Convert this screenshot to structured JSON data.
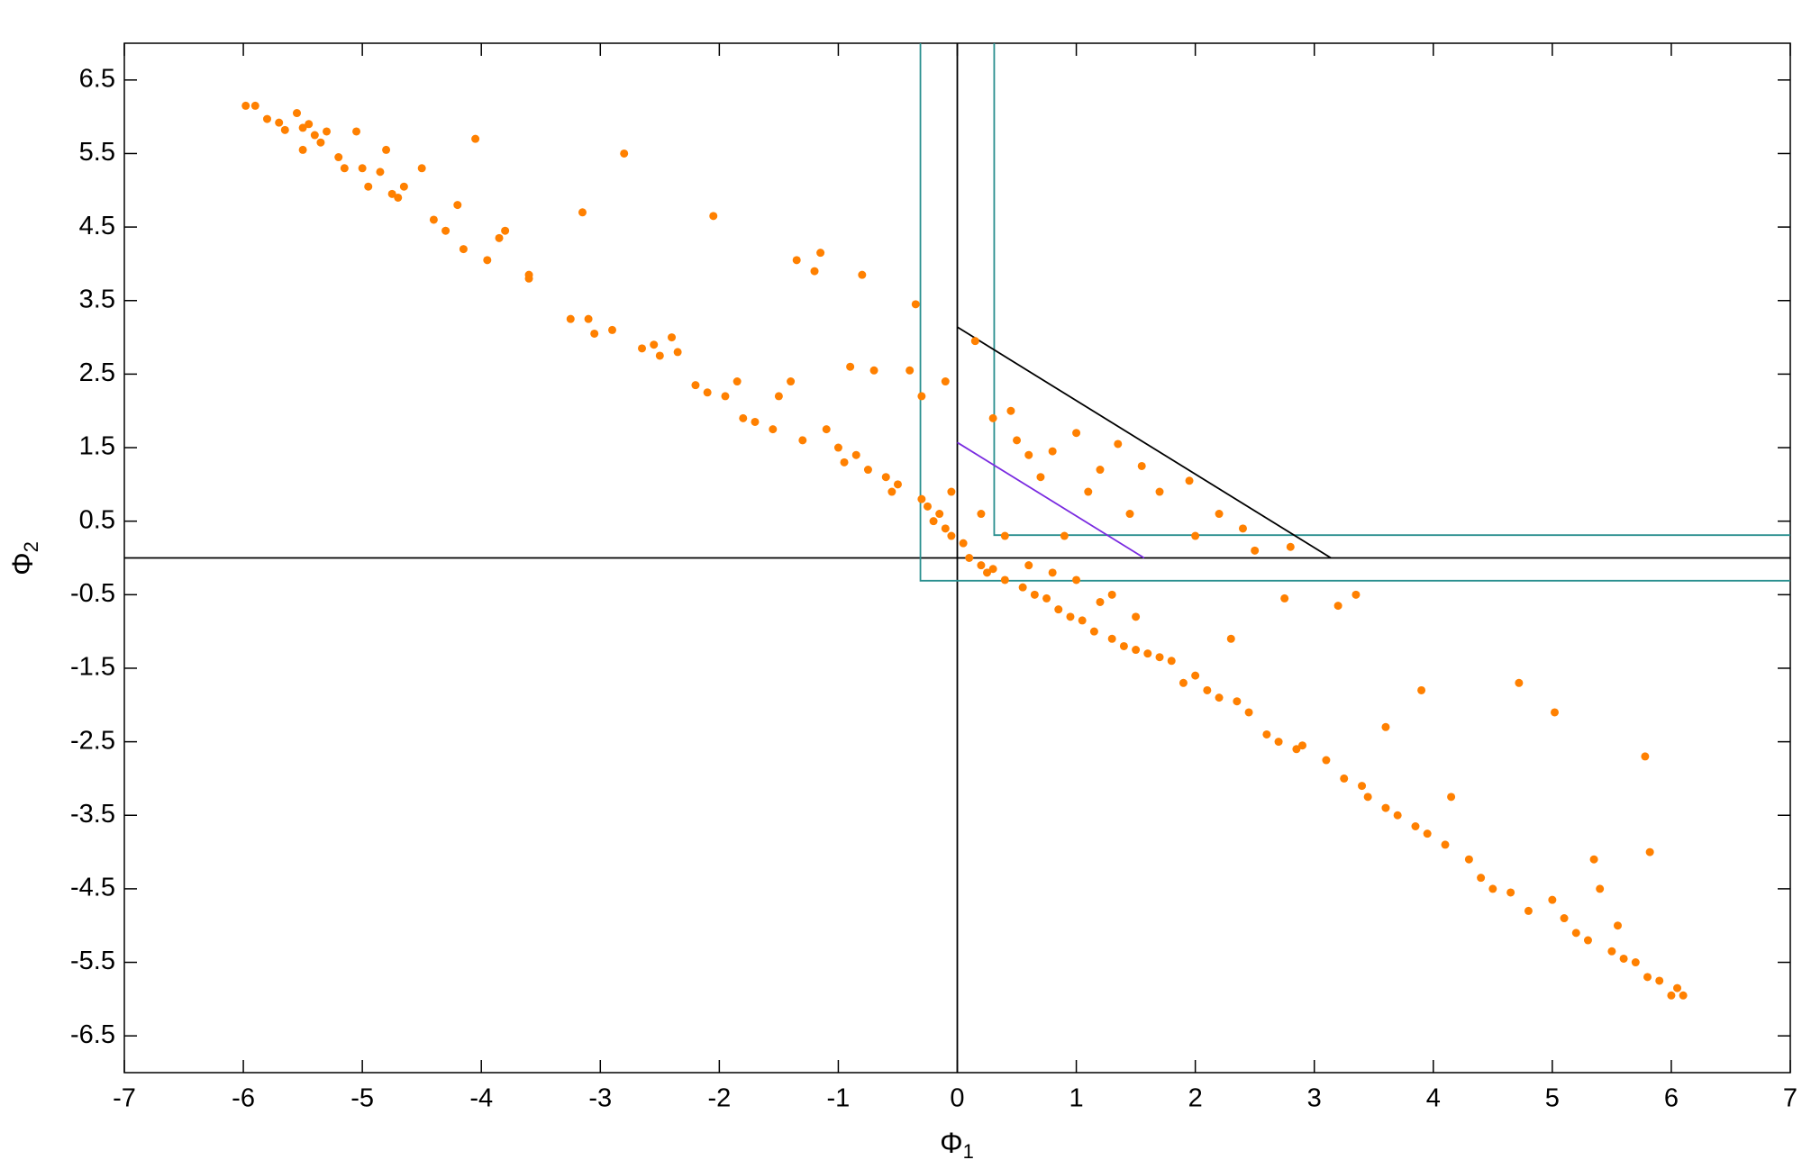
{
  "chart_data": {
    "type": "scatter",
    "x_label": {
      "symbol": "Φ",
      "subscript": "1"
    },
    "y_label": {
      "symbol": "Φ",
      "subscript": "2"
    },
    "xlim": [
      -7,
      7
    ],
    "ylim": [
      -7,
      7
    ],
    "xticks": [
      -7,
      -6,
      -5,
      -4,
      -3,
      -2,
      -1,
      0,
      1,
      2,
      3,
      4,
      5,
      6,
      7
    ],
    "yticks": [
      6.5,
      5.5,
      4.5,
      3.5,
      2.5,
      1.5,
      0.5,
      -0.5,
      -1.5,
      -2.5,
      -3.5,
      -4.5,
      -5.5,
      -6.5
    ],
    "color": "#ff8000",
    "x": [
      -5.98,
      -5.9,
      -5.8,
      -5.7,
      -5.65,
      -5.55,
      -5.5,
      -5.45,
      -5.4,
      -5.35,
      -5.5,
      -5.2,
      -5.15,
      -5.0,
      -4.95,
      -4.85,
      -4.75,
      -4.7,
      -4.65,
      -4.5,
      -5.05,
      -4.8,
      -5.3,
      -4.4,
      -4.3,
      -4.2,
      -4.15,
      -4.05,
      -3.95,
      -3.85,
      -3.8,
      -3.6,
      -3.6,
      -3.25,
      -3.15,
      -3.1,
      -3.05,
      -2.9,
      -2.8,
      -2.65,
      -2.55,
      -2.4,
      -2.5,
      -2.35,
      -2.2,
      -2.1,
      -2.05,
      -1.95,
      -1.85,
      -1.8,
      -1.7,
      -1.55,
      -1.5,
      -1.4,
      -1.35,
      -1.2,
      -1.3,
      -1.15,
      -1.1,
      -1.0,
      -0.95,
      -0.9,
      -0.85,
      -0.8,
      -0.75,
      -0.7,
      -0.6,
      -0.55,
      -0.5,
      -0.4,
      -0.35,
      -0.3,
      -0.3,
      -0.25,
      -0.2,
      -0.15,
      -0.1,
      -0.1,
      -0.05,
      0.05,
      0.1,
      0.15,
      0.2,
      0.25,
      0.3,
      0.3,
      0.4,
      0.45,
      0.5,
      0.55,
      0.6,
      0.65,
      0.7,
      0.75,
      0.8,
      0.85,
      0.95,
      1.0,
      1.05,
      1.1,
      1.15,
      1.2,
      1.3,
      1.35,
      1.4,
      1.45,
      1.5,
      1.6,
      1.7,
      1.55,
      1.8,
      1.9,
      1.95,
      2.0,
      2.1,
      2.2,
      2.3,
      2.35,
      2.45,
      2.5,
      2.6,
      2.7,
      2.75,
      2.8,
      2.85,
      2.9,
      3.1,
      3.2,
      3.25,
      3.4,
      3.45,
      3.6,
      3.6,
      3.7,
      3.85,
      3.9,
      3.95,
      4.1,
      4.15,
      4.3,
      4.4,
      4.5,
      4.65,
      4.72,
      4.8,
      5.0,
      5.02,
      5.1,
      5.2,
      5.3,
      5.35,
      5.4,
      5.5,
      5.6,
      5.7,
      5.78,
      5.8,
      5.82,
      5.9,
      6.0,
      6.05,
      6.1,
      5.55,
      1.3,
      0.9,
      0.6,
      0.4,
      0.2,
      -0.05,
      0.8,
      1.0,
      1.2,
      1.5,
      2.2,
      1.7,
      2.0,
      2.4,
      3.35
    ],
    "y": [
      6.15,
      6.15,
      5.97,
      5.92,
      5.82,
      6.05,
      5.85,
      5.9,
      5.75,
      5.65,
      5.55,
      5.45,
      5.3,
      5.3,
      5.05,
      5.25,
      4.95,
      4.9,
      5.05,
      5.3,
      5.8,
      5.55,
      5.8,
      4.6,
      4.45,
      4.8,
      4.2,
      5.7,
      4.05,
      4.35,
      4.45,
      3.85,
      3.8,
      3.25,
      4.7,
      3.25,
      3.05,
      3.1,
      5.5,
      2.85,
      2.9,
      3.0,
      2.75,
      2.8,
      2.35,
      2.25,
      4.65,
      2.2,
      2.4,
      1.9,
      1.85,
      1.75,
      2.2,
      2.4,
      4.05,
      3.9,
      1.6,
      4.15,
      1.75,
      1.5,
      1.3,
      2.6,
      1.4,
      3.85,
      1.2,
      2.55,
      1.1,
      0.9,
      1.0,
      2.55,
      3.45,
      2.2,
      0.8,
      0.7,
      0.5,
      0.6,
      2.4,
      0.4,
      0.3,
      0.2,
      0.0,
      2.95,
      -0.1,
      -0.2,
      1.9,
      -0.15,
      -0.3,
      2.0,
      1.6,
      -0.4,
      1.4,
      -0.5,
      1.1,
      -0.55,
      1.45,
      -0.7,
      -0.8,
      1.7,
      -0.85,
      0.9,
      -1.0,
      1.2,
      -1.1,
      1.55,
      -1.2,
      0.6,
      -1.25,
      -1.3,
      -1.35,
      1.25,
      -1.4,
      -1.7,
      1.05,
      -1.6,
      -1.8,
      -1.9,
      -1.1,
      -1.95,
      -2.1,
      0.1,
      -2.4,
      -2.5,
      -0.55,
      0.15,
      -2.6,
      -2.55,
      -2.75,
      -0.65,
      -3.0,
      -3.1,
      -3.25,
      -3.4,
      -2.3,
      -3.5,
      -3.65,
      -1.8,
      -3.75,
      -3.9,
      -3.25,
      -4.1,
      -4.35,
      -4.5,
      -4.55,
      -1.7,
      -4.8,
      -4.65,
      -2.1,
      -4.9,
      -5.1,
      -5.2,
      -4.1,
      -4.5,
      -5.35,
      -5.45,
      -5.5,
      -2.7,
      -5.7,
      -4.0,
      -5.75,
      -5.95,
      -5.85,
      -5.95,
      -5.0,
      -0.5,
      0.3,
      -0.1,
      0.3,
      0.6,
      0.9,
      -0.2,
      -0.3,
      -0.6,
      -0.8,
      0.6,
      0.9,
      0.3,
      0.4,
      -0.5
    ],
    "lines": [
      {
        "color": "#000000",
        "x": [
          0,
          0
        ],
        "y": [
          -7,
          7
        ]
      },
      {
        "color": "#000000",
        "x": [
          -7,
          7
        ],
        "y": [
          0,
          0
        ]
      },
      {
        "color": "#2a8f8f",
        "x": [
          -0.31,
          -0.31,
          7
        ],
        "y": [
          7,
          -0.31,
          -0.31
        ]
      },
      {
        "color": "#2a8f8f",
        "x": [
          0.31,
          0.31,
          7
        ],
        "y": [
          7,
          0.31,
          0.31
        ]
      },
      {
        "color": "#000000",
        "x": [
          0,
          3.14
        ],
        "y": [
          3.14,
          0
        ]
      },
      {
        "color": "#7a2be0",
        "x": [
          0,
          1.57
        ],
        "y": [
          1.57,
          0
        ]
      }
    ]
  }
}
